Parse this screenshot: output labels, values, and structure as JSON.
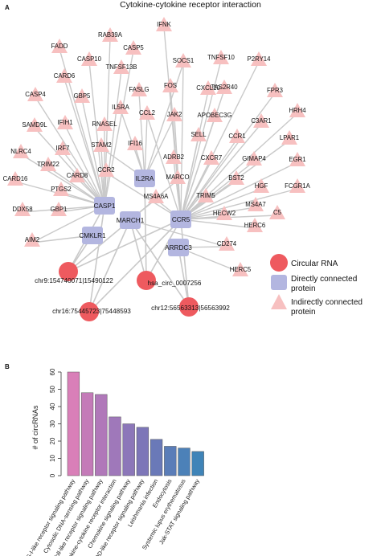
{
  "panel_a": {
    "label": "A",
    "title": "Cytokine-cytokine receptor interaction",
    "legend": {
      "circular": "Circular RNA",
      "direct_1": "Directly connected",
      "direct_2": "protein",
      "indirect_1": "Indirectly connected",
      "indirect_2": "protein"
    },
    "colors": {
      "circle": "#ee5a5f",
      "square": "#b3b6e0",
      "triangle": "#f7c0c0",
      "edge": "#c9c9c9"
    },
    "circ_nodes": [
      {
        "id": "c1",
        "label": "chr9:154740071|15490122"
      },
      {
        "id": "c2",
        "label": "hsa_circ_0007256"
      },
      {
        "id": "c3",
        "label": "chr16:75445723|75448593"
      },
      {
        "id": "c4",
        "label": "chr12:56563313|56563992"
      }
    ],
    "direct_nodes": [
      {
        "id": "IL2RA",
        "label": "IL2RA"
      },
      {
        "id": "CASP1",
        "label": "CASP1"
      },
      {
        "id": "MARCH1",
        "label": "MARCH1"
      },
      {
        "id": "CCR5",
        "label": "CCR5"
      },
      {
        "id": "CMKLR1",
        "label": "CMKLR1"
      },
      {
        "id": "ARRDC3",
        "label": "ARRDC3"
      }
    ],
    "indirect_nodes": [
      "IFNK",
      "RAB39A",
      "CASP5",
      "FADD",
      "CASP10",
      "SOCS1",
      "TNFSF10",
      "P2RY14",
      "TNFSF13B",
      "CARD6",
      "FOS",
      "TAS2R40",
      "FPR3",
      "CASP4",
      "GBP5",
      "FASLG",
      "IL5RA",
      "CXCL10",
      "HRH4",
      "SAMD9L",
      "IFIH1",
      "RNASEL",
      "CCL2",
      "JAK2",
      "APOBEC3G",
      "C3AR1",
      "LPAR1",
      "NLRC4",
      "IRF7",
      "STAM2",
      "IFI16",
      "SELL",
      "CCR1",
      "TRIM22",
      "ADRB2",
      "GIMAP4",
      "EGR1",
      "CARD16",
      "CARD8",
      "CCR2",
      "CXCR7",
      "PTGS2",
      "MARCO",
      "BST2",
      "HGF",
      "FCGR1A",
      "DDX58",
      "GBP1",
      "TRIM5",
      "MS4A6A",
      "MS4A7",
      "HECW2",
      "C5",
      "HERC6",
      "AIM2",
      "CD274",
      "HERC5"
    ]
  },
  "panel_b": {
    "label": "B",
    "chart_data": {
      "type": "bar",
      "ylabel": "# of circRNAs",
      "ylim": [
        0,
        60
      ],
      "yticks": [
        0,
        10,
        20,
        30,
        40,
        50,
        60
      ],
      "categories": [
        "RIG-I-like receptor signaling pathway",
        "Cytosolic DNA-sensing pathway",
        "Toll-like receptor signaling pathway",
        "Cytokine-cytokine receptor interaction",
        "Chemokine signaling pathway",
        "NOD-like receptor signaling pathway",
        "Leishmania infection",
        "Endocytosis",
        "Systemic lupus erythematosus",
        "Jak-STAT signaling pathway"
      ],
      "values": [
        60,
        48,
        47,
        34,
        30,
        28,
        21,
        17,
        16,
        14
      ],
      "colors": [
        "#d97fb8",
        "#c47ab8",
        "#b078b9",
        "#9f78ba",
        "#8c77b9",
        "#7d76b8",
        "#6a79b8",
        "#5a7db8",
        "#4c81b8",
        "#3f84b8"
      ]
    }
  }
}
